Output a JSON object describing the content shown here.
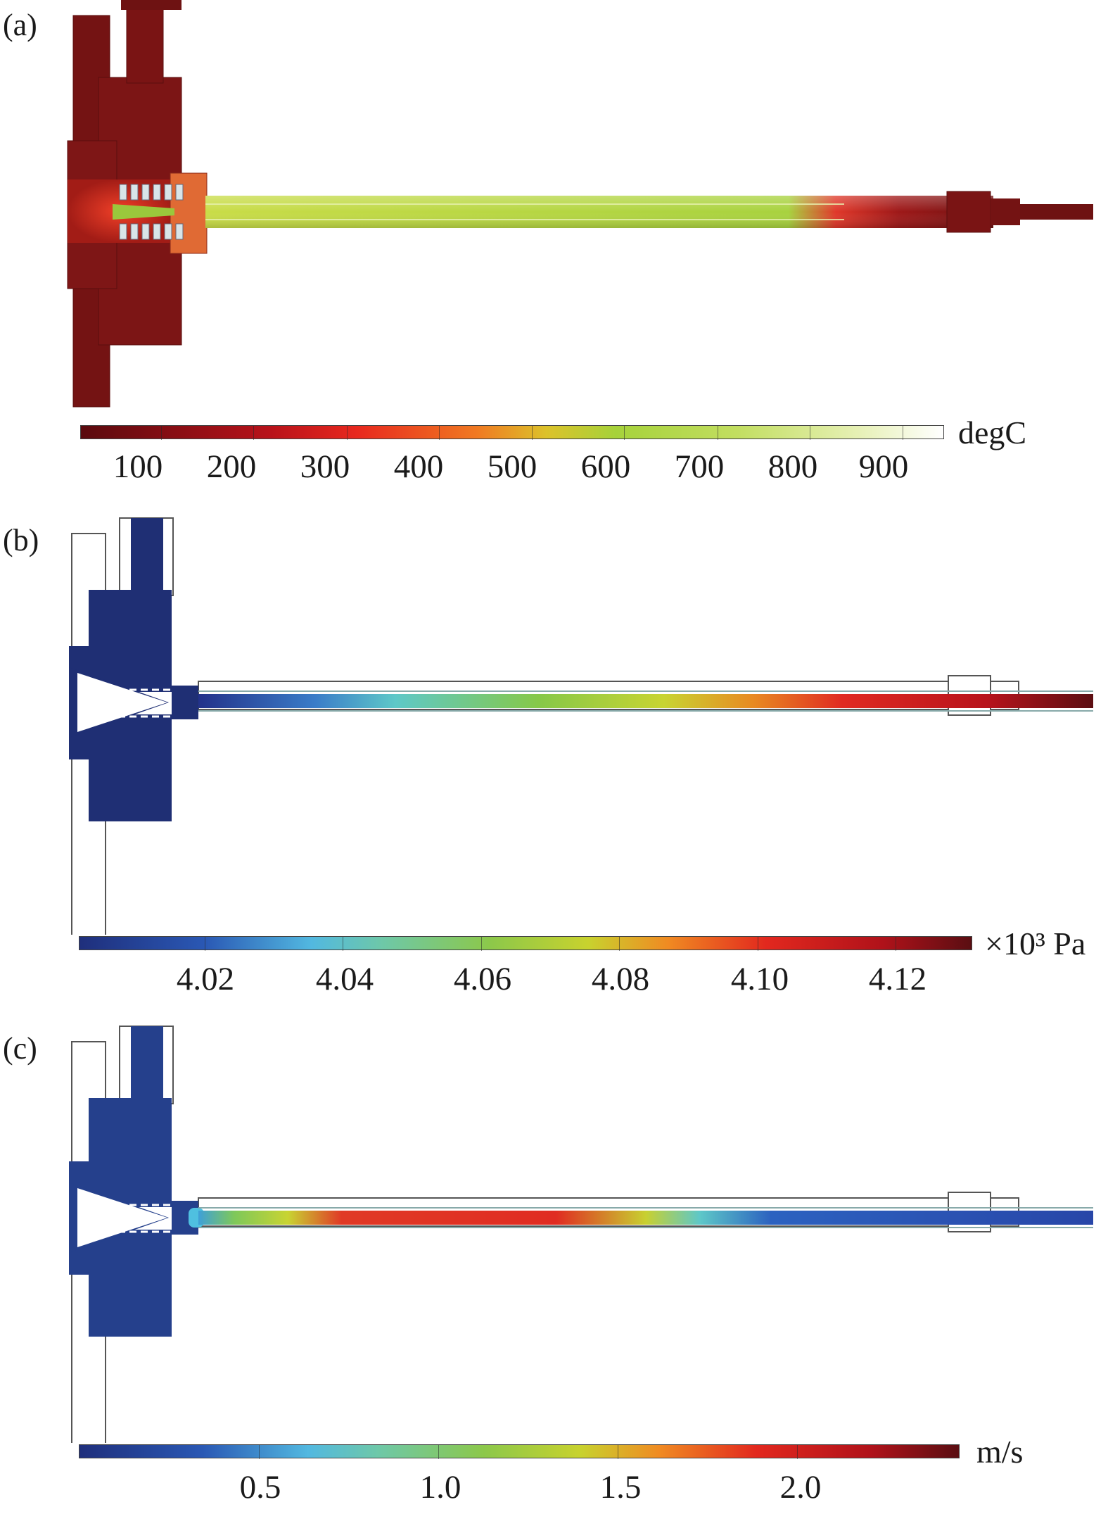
{
  "panels": [
    {
      "label": "(a)",
      "quantity": "temperature",
      "unit": "degC",
      "ticks": [
        100,
        200,
        300,
        400,
        500,
        600,
        700,
        800,
        900
      ],
      "range": [
        30,
        960
      ],
      "colormap": "thermal"
    },
    {
      "label": "(b)",
      "quantity": "pressure",
      "unit": "×10³ Pa",
      "ticks": [
        "4.02",
        "4.04",
        "4.06",
        "4.08",
        "4.10",
        "4.12"
      ],
      "range": [
        4.0,
        4.13
      ],
      "colormap": "rainbow"
    },
    {
      "label": "(c)",
      "quantity": "velocity",
      "unit": "m/s",
      "ticks": [
        "0.5",
        "1.0",
        "1.5",
        "2.0"
      ],
      "range": [
        0.0,
        2.45
      ],
      "colormap": "rainbow"
    }
  ],
  "colors": {
    "hot_metal": "#7a1414",
    "tube_green": "#9bd23a",
    "fluid_low": "#1f2f74",
    "outline": "#555555"
  }
}
